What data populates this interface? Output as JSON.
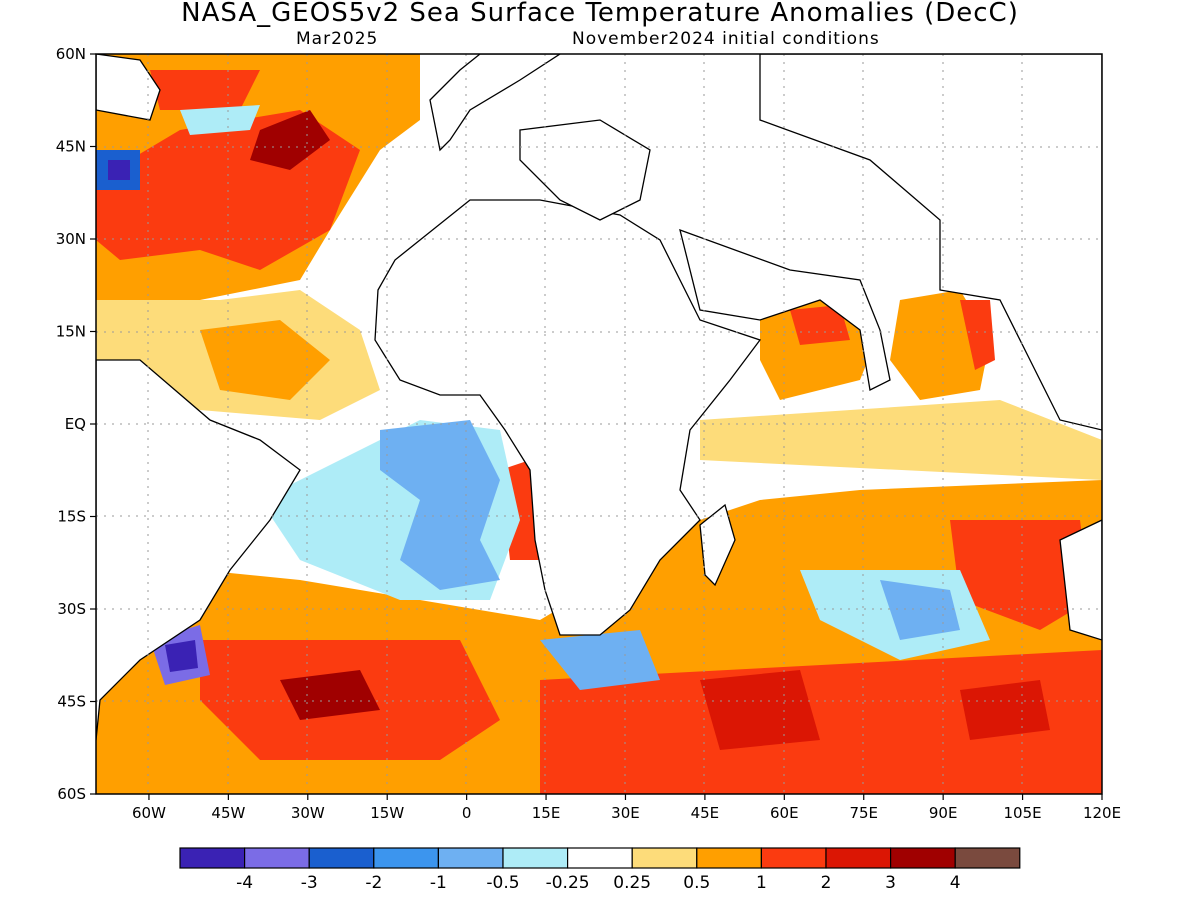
{
  "header": {
    "title": "NASA_GEOS5v2 Sea Surface Temperature Anomalies (DecC)",
    "valid_month": "Mar2025",
    "init": "November2024 initial conditions"
  },
  "map": {
    "projection": "latitude-longitude",
    "lon_range": [
      -70,
      120
    ],
    "lat_range": [
      -60,
      60
    ],
    "grid": true,
    "lat_ticks": [
      {
        "value": 60,
        "label": "60N"
      },
      {
        "value": 45,
        "label": "45N"
      },
      {
        "value": 30,
        "label": "30N"
      },
      {
        "value": 15,
        "label": "15N"
      },
      {
        "value": 0,
        "label": "EQ"
      },
      {
        "value": -15,
        "label": "15S"
      },
      {
        "value": -30,
        "label": "30S"
      },
      {
        "value": -45,
        "label": "45S"
      },
      {
        "value": -60,
        "label": "60S"
      }
    ],
    "lon_ticks": [
      {
        "value": -60,
        "label": "60W"
      },
      {
        "value": -45,
        "label": "45W"
      },
      {
        "value": -30,
        "label": "30W"
      },
      {
        "value": -15,
        "label": "15W"
      },
      {
        "value": 0,
        "label": "0"
      },
      {
        "value": 15,
        "label": "15E"
      },
      {
        "value": 30,
        "label": "30E"
      },
      {
        "value": 45,
        "label": "45E"
      },
      {
        "value": 60,
        "label": "60E"
      },
      {
        "value": 75,
        "label": "75E"
      },
      {
        "value": 90,
        "label": "90E"
      },
      {
        "value": 105,
        "label": "105E"
      },
      {
        "value": 120,
        "label": "120E"
      }
    ]
  },
  "colorbar": {
    "colors": [
      "#3a22b4",
      "#7b6ce6",
      "#1a5fcf",
      "#3c95ee",
      "#6eb0f2",
      "#aeecf7",
      "#ffffff",
      "#fddc7a",
      "#ff9f00",
      "#fb3b10",
      "#db1604",
      "#a00000",
      "#7a4a3e"
    ],
    "labels": [
      "-4",
      "-3",
      "-2",
      "-1",
      "-0.5",
      "-0.25",
      "0.25",
      "0.5",
      "1",
      "2",
      "3",
      "4"
    ]
  }
}
